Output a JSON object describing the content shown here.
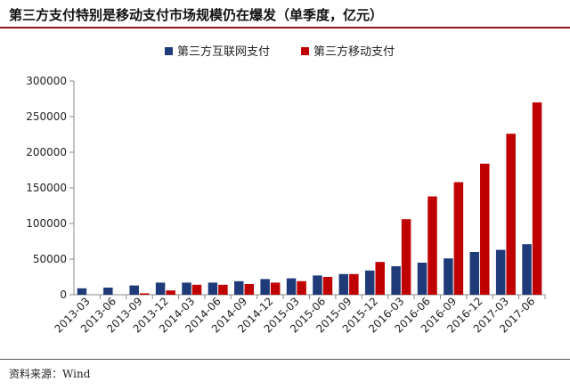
{
  "title": "第三方支付特别是移动支付市场规模仍在爆发（单季度，亿元）",
  "source": "资料来源：Wind",
  "chart_data": {
    "type": "bar",
    "categories": [
      "2013-03",
      "2013-06",
      "2013-09",
      "2013-12",
      "2014-03",
      "2014-06",
      "2014-09",
      "2014-12",
      "2015-03",
      "2015-06",
      "2015-09",
      "2015-12",
      "2016-03",
      "2016-06",
      "2016-09",
      "2016-12",
      "2017-03",
      "2017-06"
    ],
    "series": [
      {
        "name": "第三方互联网支付",
        "color": "#1f3a78",
        "values": [
          9000,
          10000,
          13000,
          17000,
          17000,
          17000,
          19000,
          22000,
          23000,
          27000,
          29000,
          34000,
          40000,
          45000,
          51000,
          60000,
          63000,
          71000
        ]
      },
      {
        "name": "第三方移动支付",
        "color": "#c00000",
        "values": [
          0,
          0,
          2000,
          6000,
          14000,
          14000,
          15000,
          17000,
          19000,
          25000,
          29000,
          46000,
          106000,
          138000,
          158000,
          184000,
          226000,
          270000
        ]
      }
    ],
    "yticks": [
      "0",
      "50000",
      "100000",
      "150000",
      "200000",
      "250000",
      "300000"
    ],
    "ylim": [
      0,
      300000
    ],
    "legend_position": "top-center",
    "grid": false
  }
}
